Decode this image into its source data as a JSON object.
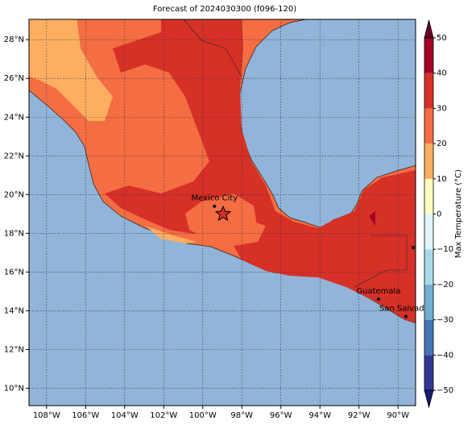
{
  "map": {
    "title": "Forecast of 2024030300 (f096-120)",
    "xlim": [
      -108.9,
      -89.1
    ],
    "ylim": [
      9.1,
      29.05
    ],
    "xticks": [
      {
        "value": -108,
        "label": "108°W"
      },
      {
        "value": -106,
        "label": "106°W"
      },
      {
        "value": -104,
        "label": "104°W"
      },
      {
        "value": -102,
        "label": "102°W"
      },
      {
        "value": -100,
        "label": "100°W"
      },
      {
        "value": -98,
        "label": "98°W"
      },
      {
        "value": -96,
        "label": "96°W"
      },
      {
        "value": -94,
        "label": "94°W"
      },
      {
        "value": -92,
        "label": "92°W"
      },
      {
        "value": -90,
        "label": "90°W"
      }
    ],
    "yticks": [
      {
        "value": 10,
        "label": "10°N"
      },
      {
        "value": 12,
        "label": "12°N"
      },
      {
        "value": 14,
        "label": "14°N"
      },
      {
        "value": 16,
        "label": "16°N"
      },
      {
        "value": 18,
        "label": "18°N"
      },
      {
        "value": 20,
        "label": "20°N"
      },
      {
        "value": 22,
        "label": "22°N"
      },
      {
        "value": 24,
        "label": "24°N"
      },
      {
        "value": 26,
        "label": "26°N"
      },
      {
        "value": 28,
        "label": "28°N"
      }
    ],
    "cities": [
      {
        "name": "Mexico City",
        "lon": -99.4,
        "lat": 19.4
      },
      {
        "name": "Guatemala",
        "lon": -91.0,
        "lat": 14.6
      },
      {
        "name": "San Salvador",
        "lon": -89.6,
        "lat": 13.7
      }
    ],
    "colorbar": {
      "label": "Max Temperature (°C)",
      "lim": [
        -50,
        50
      ],
      "ticks": [
        {
          "value": -50,
          "label": "−50"
        },
        {
          "value": -40,
          "label": "−40"
        },
        {
          "value": -30,
          "label": "−30"
        },
        {
          "value": -20,
          "label": "−20"
        },
        {
          "value": -10,
          "label": "−10"
        },
        0,
        10,
        20,
        30,
        40,
        50
      ],
      "colors": [
        "#313695",
        "#4575b4",
        "#74add1",
        "#abd9e9",
        "#e0f3f8",
        "#ffffbf",
        "#fdae61",
        "#f46d43",
        "#d73027",
        "#a50026"
      ]
    }
  }
}
